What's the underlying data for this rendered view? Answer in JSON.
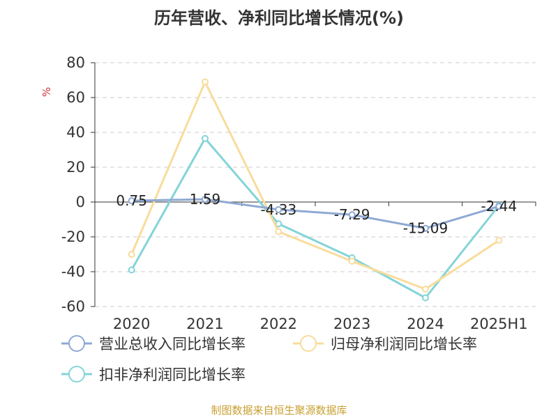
{
  "chart_data": {
    "type": "line",
    "title": "历年营收、净利同比增长情况(%)",
    "ylabel": "%",
    "xlabel": "",
    "categories": [
      "2020",
      "2021",
      "2022",
      "2023",
      "2024",
      "2025H1"
    ],
    "ylim": [
      -60,
      80
    ],
    "yticks": [
      80,
      60,
      40,
      20,
      0,
      -20,
      -40,
      -60
    ],
    "grid": true,
    "legend_position": "bottom",
    "series": [
      {
        "name": "营业总收入同比增长率",
        "color": "#8fa9d4",
        "values": [
          0.75,
          1.59,
          -4.33,
          -7.29,
          -15.09,
          -2.44
        ],
        "labels": [
          "0.75",
          "1.59",
          "-4.33",
          "-7.29",
          "-15.09",
          "-2.44"
        ]
      },
      {
        "name": "归母净利润同比增长率",
        "color": "#f9dc9b",
        "values": [
          -30,
          69,
          -17,
          -34,
          -50,
          -22
        ]
      },
      {
        "name": "扣非净利润同比增长率",
        "color": "#84d4d8",
        "values": [
          -39,
          36.5,
          -12.5,
          -32,
          -55,
          -2
        ]
      }
    ]
  },
  "footer": {
    "source": "制图数据来自恒生聚源数据库"
  }
}
